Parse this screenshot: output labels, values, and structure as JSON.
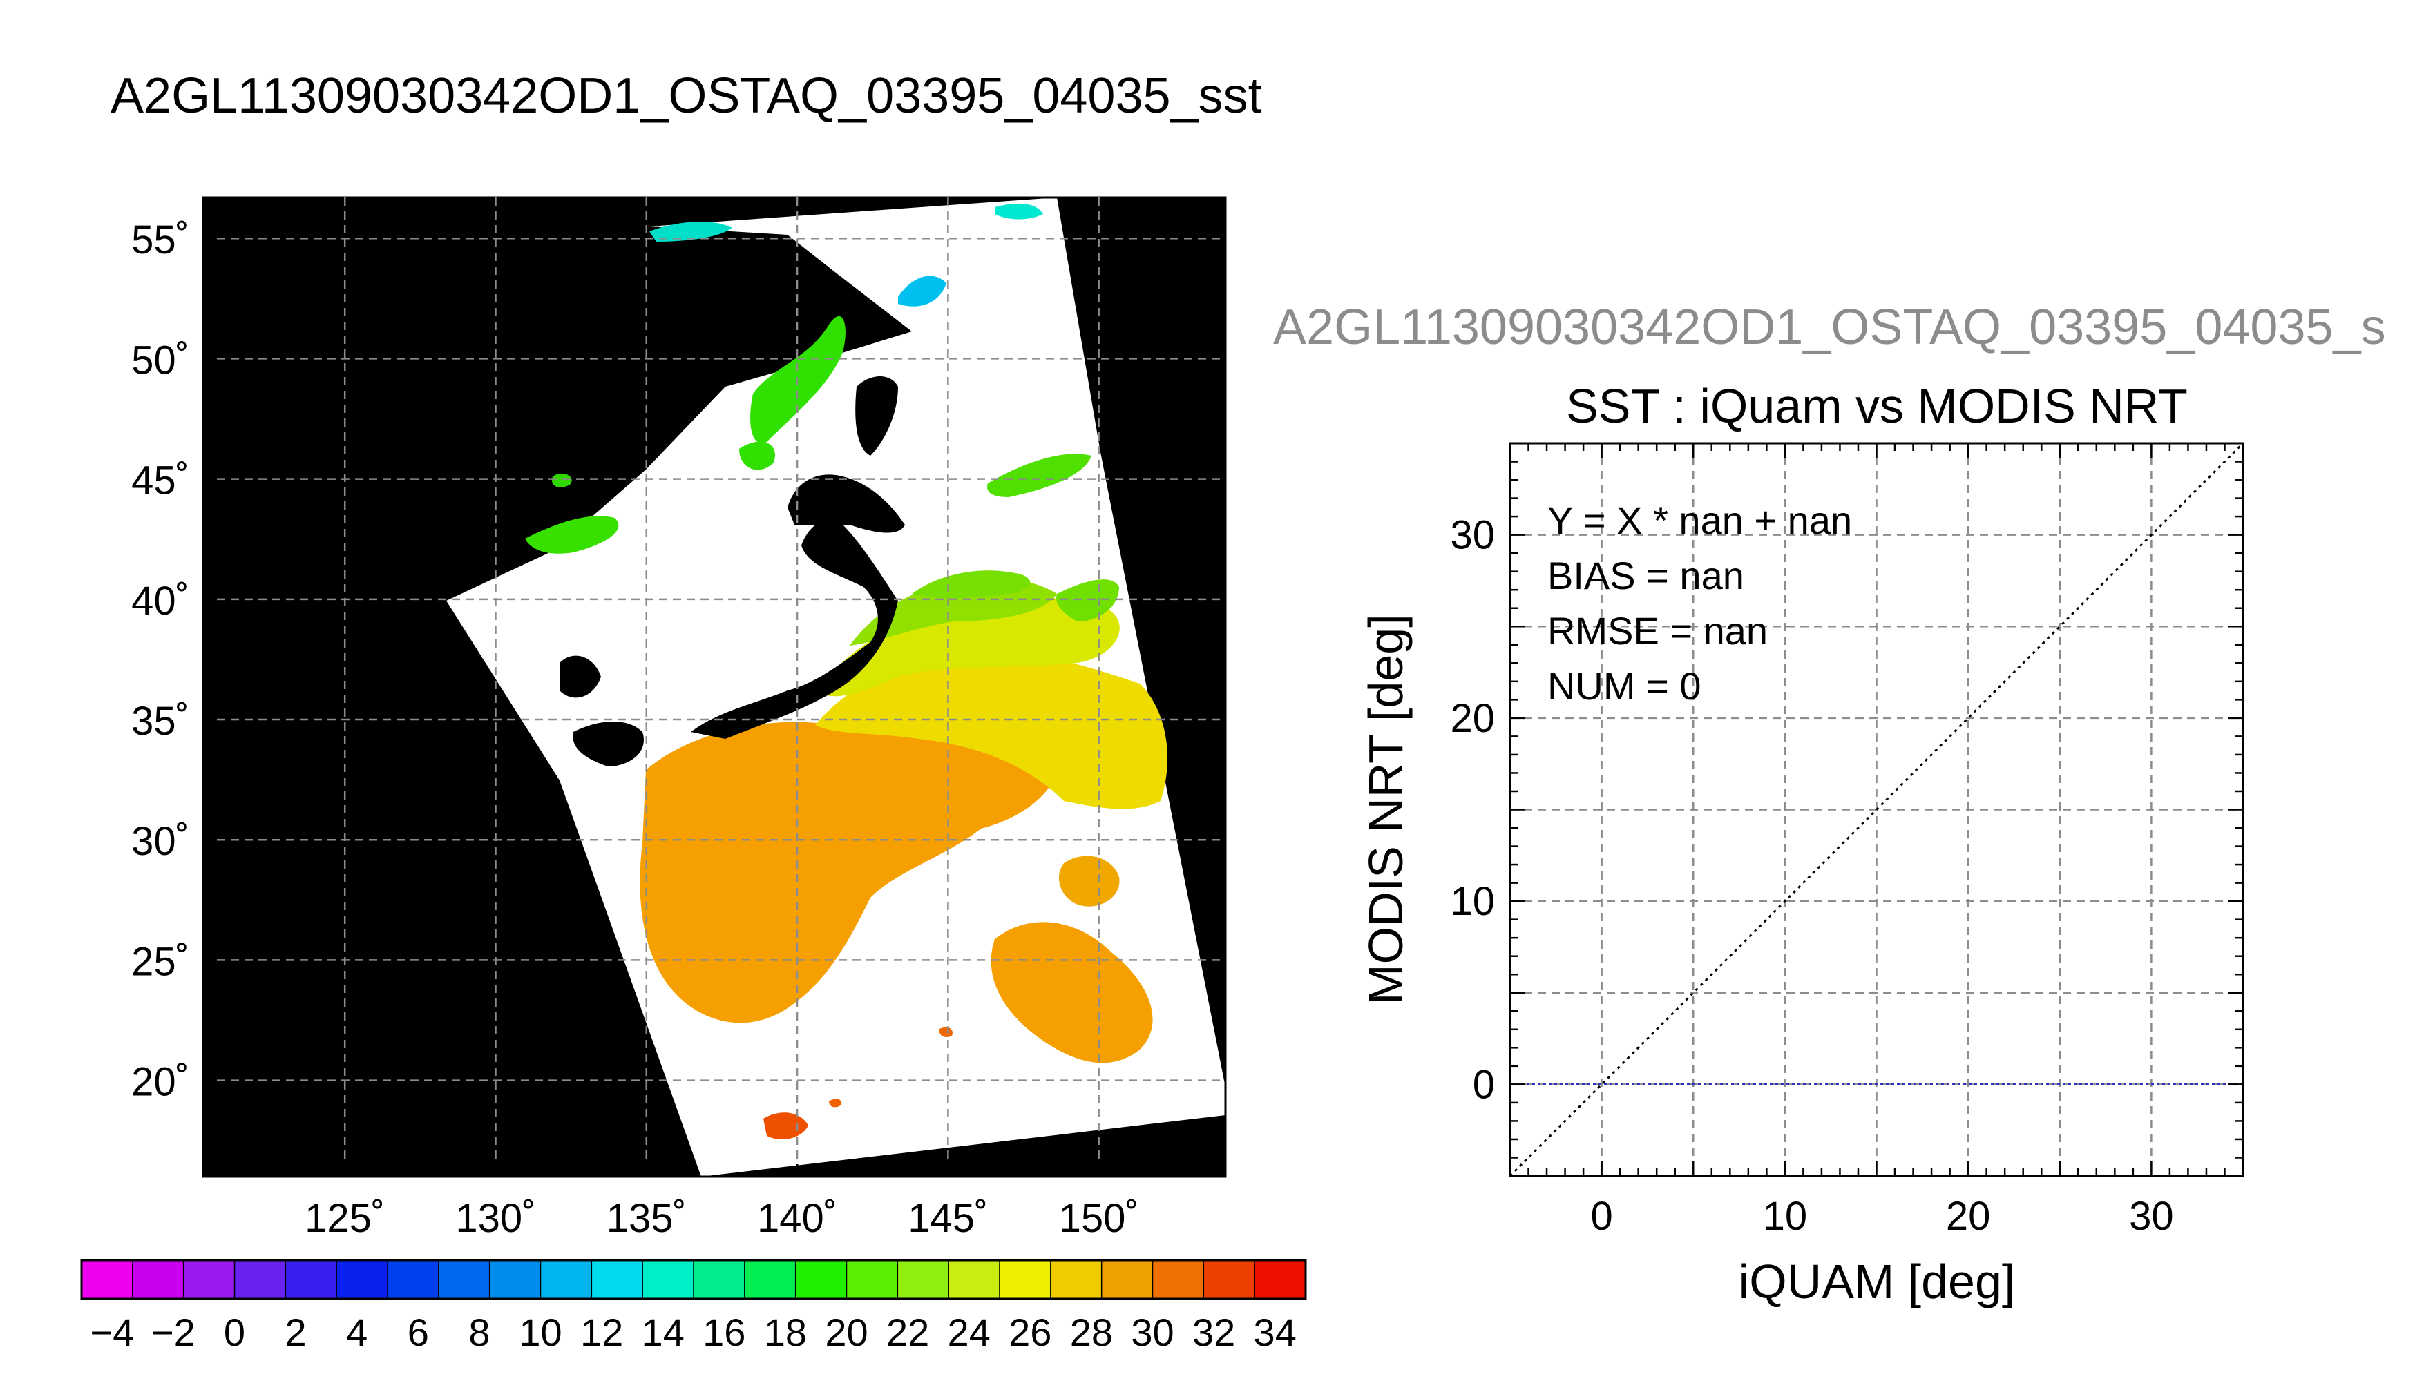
{
  "map": {
    "title": "A2GL11309030342OD1_OSTAQ_03395_04035_sst",
    "lat_ticks": [
      "55˚",
      "50˚",
      "45˚",
      "40˚",
      "35˚",
      "30˚",
      "25˚",
      "20˚"
    ],
    "lon_ticks": [
      "125˚",
      "130˚",
      "135˚",
      "140˚",
      "145˚",
      "150˚"
    ],
    "lat_range": [
      16,
      56.7
    ],
    "lon_range": [
      120.3,
      154.2
    ],
    "lat_values": [
      55,
      50,
      45,
      40,
      35,
      30,
      25,
      20
    ],
    "lon_values": [
      125,
      130,
      135,
      140,
      145,
      150
    ],
    "land_color": "#000000",
    "cloud_color": "#ffffff"
  },
  "colorbar": {
    "labels": [
      "−4",
      "−2",
      "0",
      "2",
      "4",
      "6",
      "8",
      "10",
      "12",
      "14",
      "16",
      "18",
      "20",
      "22",
      "24",
      "26",
      "28",
      "30",
      "32",
      "34"
    ],
    "range": [
      -5,
      35
    ],
    "colors": [
      "#ee00ee",
      "#c800ee",
      "#9a1aee",
      "#6a20ee",
      "#3a20ee",
      "#0a20ee",
      "#0040ee",
      "#0068ee",
      "#008cee",
      "#00b4ee",
      "#00dcee",
      "#00eec8",
      "#00ee8c",
      "#00ee50",
      "#20ee00",
      "#5aee00",
      "#90ee10",
      "#c8ee10",
      "#eeee00",
      "#eecc00",
      "#eea000",
      "#ee7000",
      "#ee4000",
      "#ee1000"
    ]
  },
  "scatter": {
    "header": "A2GL11309030342OD1_OSTAQ_03395_04035_s",
    "header_color": "#8c8c8c",
    "title": "SST : iQuam vs MODIS NRT",
    "equation": "Y = X * nan + nan",
    "bias": "BIAS = nan",
    "rmse": "RMSE = nan",
    "num": "NUM = 0",
    "xlabel": "iQUAM [deg]",
    "ylabel": "MODIS NRT [deg]",
    "x_ticks": [
      "0",
      "10",
      "20",
      "30"
    ],
    "y_ticks": [
      "0",
      "10",
      "20",
      "30"
    ],
    "identity_color": "#000000",
    "zero_line_color": "#3030c0"
  },
  "chart_data": [
    {
      "type": "heatmap",
      "title": "A2GL11309030342OD1_OSTAQ_03395_04035_sst",
      "x": [
        125,
        130,
        135,
        140,
        145,
        150
      ],
      "y": [
        20,
        25,
        30,
        35,
        40,
        45,
        50,
        55
      ],
      "xlim": [
        120.3,
        154.2
      ],
      "ylim": [
        16,
        56.7
      ],
      "colorscale_range": [
        -5,
        35
      ],
      "grid": true
    },
    {
      "type": "scatter",
      "title": "SST : iQuam vs MODIS NRT",
      "xlabel": "iQUAM [deg]",
      "ylabel": "MODIS NRT [deg]",
      "xlim": [
        -5,
        35
      ],
      "ylim": [
        -5,
        35
      ],
      "series": [],
      "lines": [
        {
          "x": [
            -5,
            35
          ],
          "y": [
            -5,
            35
          ],
          "style": "dotted"
        },
        {
          "x": [
            -5,
            35
          ],
          "y": [
            0,
            0
          ],
          "style": "dotted"
        }
      ],
      "stats": {
        "bias": "nan",
        "rmse": "nan",
        "num": 0,
        "slope": "nan",
        "intercept": "nan"
      },
      "grid": true
    }
  ]
}
